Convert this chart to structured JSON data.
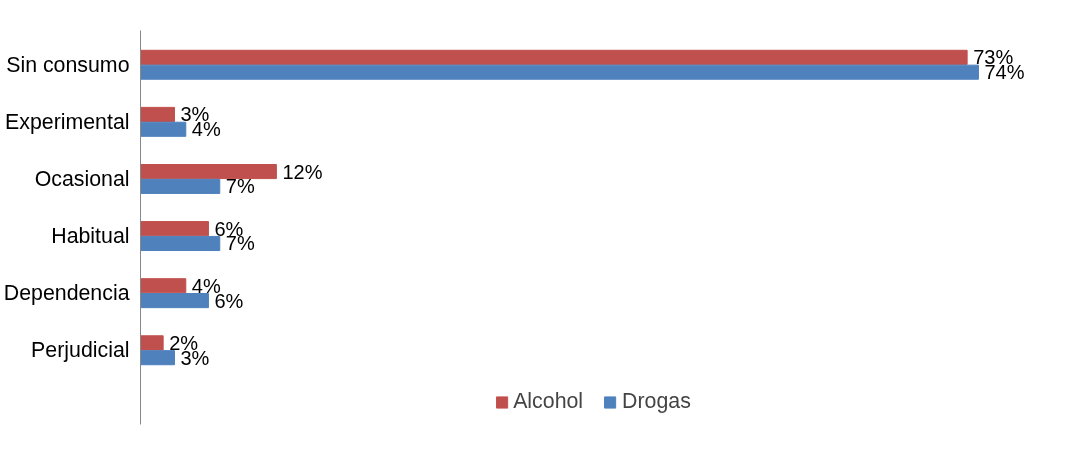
{
  "chart_data": {
    "type": "bar",
    "orientation": "horizontal",
    "categories": [
      "Sin consumo",
      "Experimental",
      "Ocasional",
      "Habitual",
      "Dependencia",
      "Perjudicial"
    ],
    "series": [
      {
        "name": "Alcohol",
        "color": "#c0504d",
        "values": [
          73,
          3,
          12,
          6,
          4,
          2
        ],
        "value_labels": [
          "73%",
          "3%",
          "12%",
          "6%",
          "4%",
          "2%"
        ]
      },
      {
        "name": "Drogas",
        "color": "#4f81bd",
        "values": [
          74,
          4,
          7,
          7,
          6,
          3
        ],
        "value_labels": [
          "74%",
          "4%",
          "7%",
          "7%",
          "6%",
          "3%"
        ]
      }
    ],
    "tick_labels": "y",
    "grid": false,
    "legend": "bottom"
  }
}
